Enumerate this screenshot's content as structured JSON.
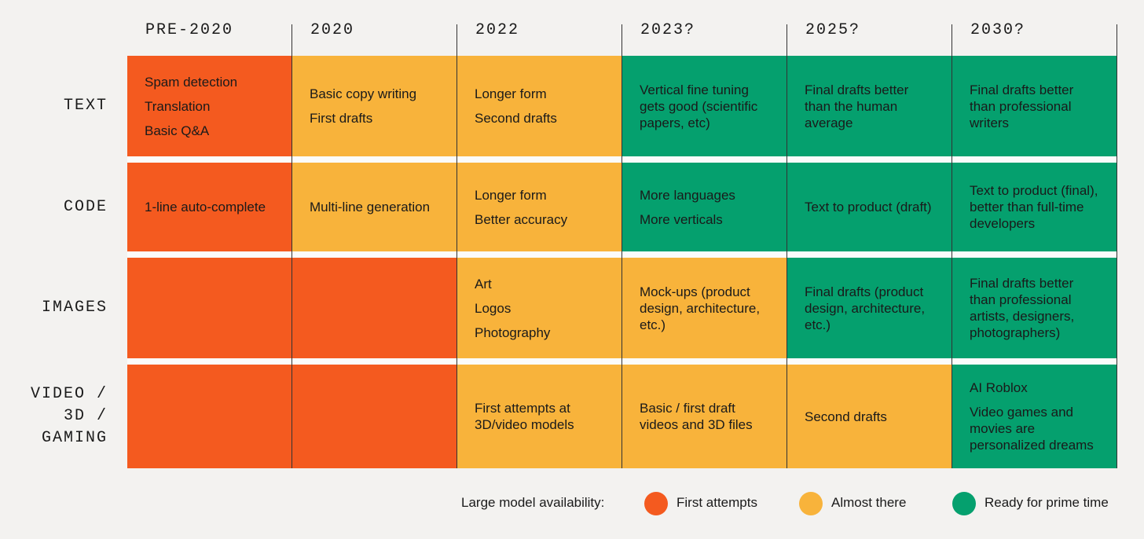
{
  "columns": [
    "PRE-2020",
    "2020",
    "2022",
    "2023?",
    "2025?",
    "2030?"
  ],
  "legend": {
    "title": "Large model availability:",
    "items": [
      {
        "label": "First attempts",
        "color": "#f45a1f"
      },
      {
        "label": "Almost there",
        "color": "#f8b33b"
      },
      {
        "label": "Ready for prime time",
        "color": "#05a06e"
      }
    ]
  },
  "rows": [
    {
      "label": [
        "TEXT"
      ],
      "cells": [
        {
          "status": 0,
          "items": [
            [
              "Spam detection"
            ],
            [
              "Translation"
            ],
            [
              "Basic Q&A"
            ]
          ]
        },
        {
          "status": 1,
          "items": [
            [
              "Basic copy writing"
            ],
            [
              "First drafts"
            ]
          ]
        },
        {
          "status": 1,
          "items": [
            [
              "Longer form"
            ],
            [
              "Second drafts"
            ]
          ]
        },
        {
          "status": 2,
          "items": [
            [
              "Vertical fine tuning",
              "gets good (scientific",
              "papers, etc)"
            ]
          ]
        },
        {
          "status": 2,
          "items": [
            [
              "Final drafts better",
              "than the human",
              "average"
            ]
          ]
        },
        {
          "status": 2,
          "items": [
            [
              "Final drafts better",
              "than professional",
              "writers"
            ]
          ]
        }
      ]
    },
    {
      "label": [
        "CODE"
      ],
      "cells": [
        {
          "status": 0,
          "items": [
            [
              "1-line auto-complete"
            ]
          ]
        },
        {
          "status": 1,
          "items": [
            [
              "Multi-line generation"
            ]
          ]
        },
        {
          "status": 1,
          "items": [
            [
              "Longer form"
            ],
            [
              "Better accuracy"
            ]
          ]
        },
        {
          "status": 2,
          "items": [
            [
              "More languages"
            ],
            [
              "More verticals"
            ]
          ]
        },
        {
          "status": 2,
          "items": [
            [
              "Text to product (draft)"
            ]
          ]
        },
        {
          "status": 2,
          "items": [
            [
              "Text to product (final),",
              "better than full-time",
              "developers"
            ]
          ]
        }
      ]
    },
    {
      "label": [
        "IMAGES"
      ],
      "cells": [
        {
          "status": 0,
          "items": []
        },
        {
          "status": 0,
          "items": []
        },
        {
          "status": 1,
          "items": [
            [
              "Art"
            ],
            [
              "Logos"
            ],
            [
              "Photography"
            ]
          ]
        },
        {
          "status": 1,
          "items": [
            [
              "Mock-ups (product",
              "design, architecture,",
              "etc.)"
            ]
          ]
        },
        {
          "status": 2,
          "items": [
            [
              "Final drafts (product",
              "design, architecture,",
              "etc.)"
            ]
          ]
        },
        {
          "status": 2,
          "items": [
            [
              "Final drafts better",
              "than professional",
              "artists, designers,",
              "photographers)"
            ]
          ]
        }
      ]
    },
    {
      "label": [
        "VIDEO /",
        "3D /",
        "GAMING"
      ],
      "cells": [
        {
          "status": 0,
          "items": []
        },
        {
          "status": 0,
          "items": []
        },
        {
          "status": 1,
          "items": [
            [
              "First attempts at",
              "3D/video models"
            ]
          ]
        },
        {
          "status": 1,
          "items": [
            [
              "Basic / first draft",
              "videos and 3D files"
            ]
          ]
        },
        {
          "status": 1,
          "items": [
            [
              "Second drafts"
            ]
          ]
        },
        {
          "status": 2,
          "items": [
            [
              "AI Roblox"
            ],
            [
              "Video games and",
              "movies are",
              "personalized dreams"
            ]
          ]
        }
      ]
    }
  ]
}
